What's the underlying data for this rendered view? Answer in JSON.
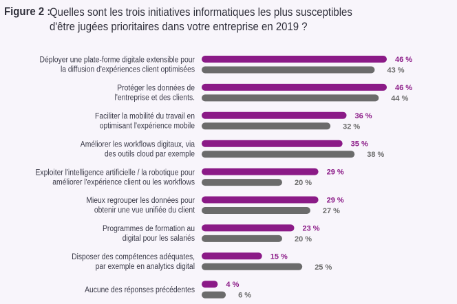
{
  "figure_label": "Figure 2 :",
  "title_lines": [
    "Quelles sont les trois initiatives informatiques les plus susceptibles",
    "d'être jugées prioritaires dans votre entreprise en 2019 ?"
  ],
  "colors": {
    "series_1": "#8b1a87",
    "series_2": "#6b6b6b",
    "background": "#f8f5fb",
    "label_text": "#3a3a48"
  },
  "chart_data": {
    "type": "bar",
    "orientation": "horizontal",
    "title": "Quelles sont les trois initiatives informatiques les plus susceptibles d'être jugées prioritaires dans votre entreprise en 2019 ?",
    "xlabel": "",
    "ylabel": "",
    "unit": "%",
    "xlim": [
      0,
      46
    ],
    "grid": false,
    "legend": "none",
    "categories": [
      [
        "Déployer une plate-forme digitale extensible pour",
        "la diffusion d'expériences client optimisées"
      ],
      [
        "Protéger les données de",
        "l'entreprise et des clients."
      ],
      [
        "Faciliter la mobilité du travail en",
        "optimisant l'expérience mobile"
      ],
      [
        "Améliorer les workflows digitaux, via",
        "des outils cloud par exemple"
      ],
      [
        "Exploiter l'intelligence artificielle / la robotique pour",
        "améliorer l'expérience client ou les workflows"
      ],
      [
        "Mieux regrouper les données pour",
        "obtenir une vue unifiée du client"
      ],
      [
        "Programmes de formation au",
        "digital pour les salariés"
      ],
      [
        "Disposer des compétences adéquates,",
        "par exemple en analytics digital"
      ],
      [
        "Aucune des réponses précédentes"
      ]
    ],
    "series": [
      {
        "name": "series_1",
        "color": "#8b1a87",
        "values": [
          46,
          46,
          36,
          35,
          29,
          29,
          23,
          15,
          4
        ]
      },
      {
        "name": "series_2",
        "color": "#6b6b6b",
        "values": [
          43,
          44,
          32,
          38,
          20,
          27,
          20,
          25,
          6
        ]
      }
    ],
    "value_suffix": " %"
  }
}
